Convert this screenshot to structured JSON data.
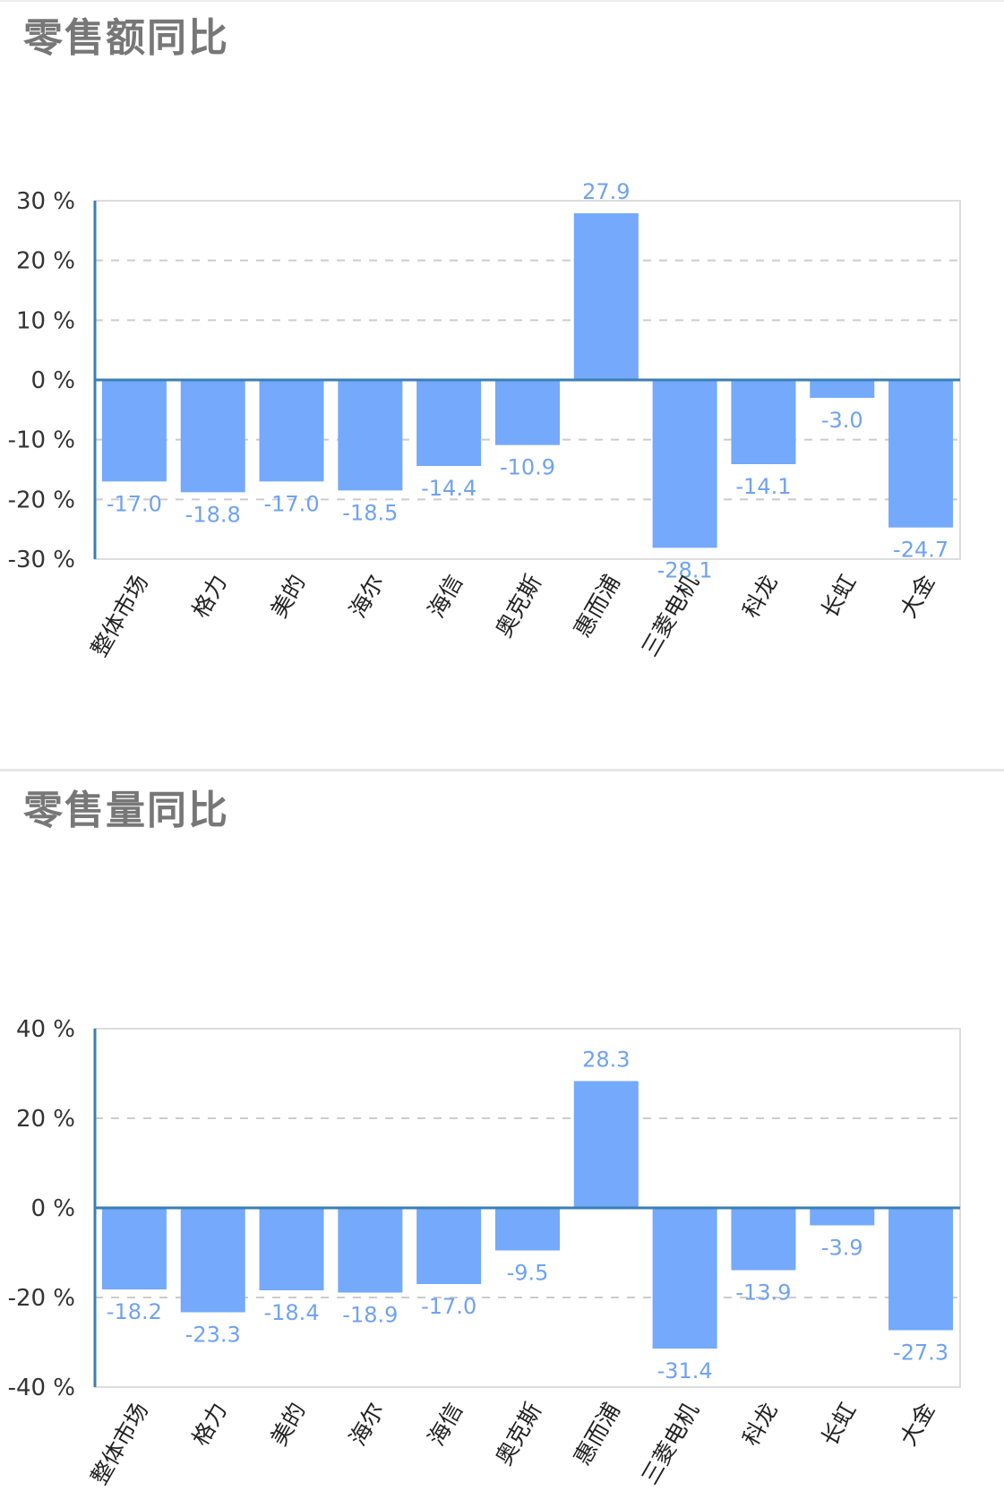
{
  "charts": [
    {
      "title": "零售额同比",
      "chart_data": {
        "type": "bar",
        "title": "零售额同比",
        "xlabel": "",
        "ylabel": "",
        "categories": [
          "整体市场",
          "格力",
          "美的",
          "海尔",
          "海信",
          "奥克斯",
          "惠而浦",
          "三菱电机",
          "科龙",
          "长虹",
          "大金"
        ],
        "values": [
          -17.0,
          -18.8,
          -17.0,
          -18.5,
          -14.4,
          -10.9,
          27.9,
          -28.1,
          -14.1,
          -3.0,
          -24.7
        ],
        "data_labels": [
          "-17.0",
          "-18.8",
          "-17.0",
          "-18.5",
          "-14.4",
          "-10.9",
          "27.9",
          "-28.1",
          "-14.1",
          "-3.0",
          "-24.7"
        ],
        "ylim": [
          -30,
          30
        ],
        "yticks": [
          30,
          20,
          10,
          0,
          -10,
          -20,
          -30
        ],
        "ytick_labels": [
          "30 %",
          "20 %",
          "10 %",
          "0 %",
          "-10 %",
          "-20 %",
          "-30 %"
        ],
        "grid": "horizontal-dashed",
        "bar_color": "#74a9fb",
        "axis_color": "#3a7fb5",
        "label_color": "#6fa2f2"
      }
    },
    {
      "title": "零售量同比",
      "chart_data": {
        "type": "bar",
        "title": "零售量同比",
        "xlabel": "",
        "ylabel": "",
        "categories": [
          "整体市场",
          "格力",
          "美的",
          "海尔",
          "海信",
          "奥克斯",
          "惠而浦",
          "三菱电机",
          "科龙",
          "长虹",
          "大金"
        ],
        "values": [
          -18.2,
          -23.3,
          -18.4,
          -18.9,
          -17.0,
          -9.5,
          28.3,
          -31.4,
          -13.9,
          -3.9,
          -27.3
        ],
        "data_labels": [
          "-18.2",
          "-23.3",
          "-18.4",
          "-18.9",
          "-17.0",
          "-9.5",
          "28.3",
          "-31.4",
          "-13.9",
          "-3.9",
          "-27.3"
        ],
        "ylim": [
          -40,
          40
        ],
        "yticks": [
          40,
          20,
          0,
          -20,
          -40
        ],
        "ytick_labels": [
          "40 %",
          "20 %",
          "0 %",
          "-20 %",
          "-40 %"
        ],
        "grid": "horizontal-dashed",
        "bar_color": "#74a9fb",
        "axis_color": "#3a7fb5",
        "label_color": "#6fa2f2"
      }
    }
  ]
}
